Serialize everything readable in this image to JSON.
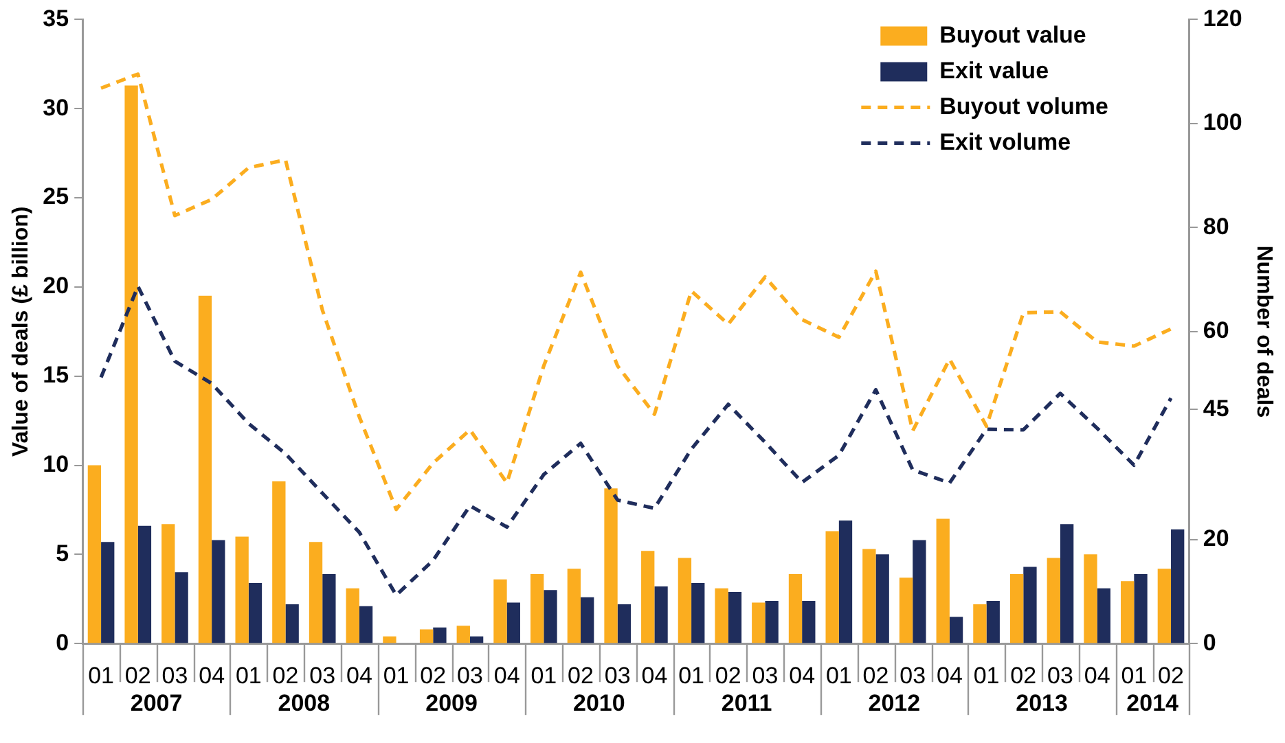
{
  "chart_data": {
    "type": "bar",
    "ylabel": "Value of deals (£ billion)",
    "y2label": "Number of deals",
    "categories": [
      "01",
      "02",
      "03",
      "04",
      "01",
      "02",
      "03",
      "04",
      "01",
      "02",
      "03",
      "04",
      "01",
      "02",
      "03",
      "04",
      "01",
      "02",
      "03",
      "04",
      "01",
      "02",
      "03",
      "04",
      "01",
      "02",
      "03",
      "04",
      "01",
      "02"
    ],
    "annotations": [
      "2007",
      "2008",
      "2009",
      "2010",
      "2011",
      "2012",
      "2013",
      "2014"
    ],
    "ylim": [
      0,
      35
    ],
    "yticks": [
      0,
      5,
      10,
      15,
      20,
      25,
      30,
      35
    ],
    "y2lim": [
      0,
      120
    ],
    "y2ticks": [
      0,
      20,
      45,
      60,
      80,
      100,
      120
    ],
    "legend": "top right",
    "series": [
      {
        "name": "Buyout value",
        "color": "#fbad1f",
        "values": [
          10.0,
          31.3,
          6.7,
          19.5,
          6.0,
          9.1,
          5.7,
          3.1,
          0.4,
          0.8,
          1.0,
          3.6,
          3.9,
          4.2,
          8.7,
          5.2,
          4.8,
          3.1,
          2.3,
          3.9,
          6.3,
          5.3,
          3.7,
          7.0,
          2.2,
          3.9,
          4.8,
          5.0,
          3.5,
          4.2
        ]
      },
      {
        "name": "Exit value",
        "color": "#1f2d5c",
        "values": [
          5.7,
          6.6,
          4.0,
          5.8,
          3.4,
          2.2,
          3.9,
          2.1,
          0,
          0.9,
          0.4,
          2.3,
          3.0,
          2.6,
          2.2,
          3.2,
          3.4,
          2.9,
          2.4,
          2.4,
          6.9,
          5.0,
          5.8,
          1.5,
          2.4,
          4.3,
          6.7,
          3.1,
          3.9,
          6.4
        ]
      },
      {
        "name": "Buyout volume",
        "type": "line",
        "axis": "y2",
        "line_style": "dashed",
        "color": "#fbad1f",
        "values": [
          106.8,
          109.5,
          82.3,
          85.4,
          91.5,
          93.0,
          64.1,
          43.6,
          25.8,
          34.7,
          41.1,
          30.9,
          53.4,
          71.4,
          53.4,
          44.1,
          67.8,
          61.4,
          70.5,
          62.3,
          58.9,
          71.6,
          40.9,
          54.7,
          41.8,
          63.6,
          63.8,
          58.0,
          57.2,
          60.5
        ]
      },
      {
        "name": "Exit volume",
        "type": "line",
        "axis": "y2",
        "line_style": "dashed",
        "color": "#1f2d5c",
        "values": [
          51.2,
          68.7,
          54.3,
          50.0,
          42.3,
          36.5,
          28.9,
          21.4,
          9.3,
          16.0,
          26.5,
          22.4,
          32.5,
          38.5,
          27.6,
          26.0,
          37.4,
          46.0,
          38.7,
          31.0,
          36.2,
          48.8,
          33.4,
          30.9,
          41.2,
          41.1,
          48.1,
          41.4,
          34.3,
          47.2
        ]
      }
    ]
  }
}
